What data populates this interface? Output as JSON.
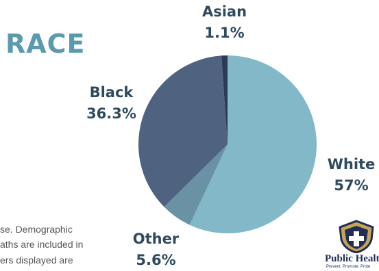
{
  "page": {
    "title": "RACE",
    "body_lines": [
      "se. Demographic",
      "aths are included in",
      "ers displayed are"
    ]
  },
  "logo": {
    "text": "Public Health",
    "tagline": "Prevent. Promote. Prote"
  },
  "chart_data": {
    "type": "pie",
    "title": "",
    "slices": [
      {
        "label": "White",
        "value": 57,
        "display": "57%",
        "color": "#82b8c7"
      },
      {
        "label": "Other",
        "value": 5.6,
        "display": "5.6%",
        "color": "#6a92a5"
      },
      {
        "label": "Black",
        "value": 36.3,
        "display": "36.3%",
        "color": "#4f6380"
      },
      {
        "label": "Asian",
        "value": 1.1,
        "display": "1.1%",
        "color": "#2d3a55"
      }
    ],
    "legend": "none",
    "label_color": "#2f4a5e"
  }
}
